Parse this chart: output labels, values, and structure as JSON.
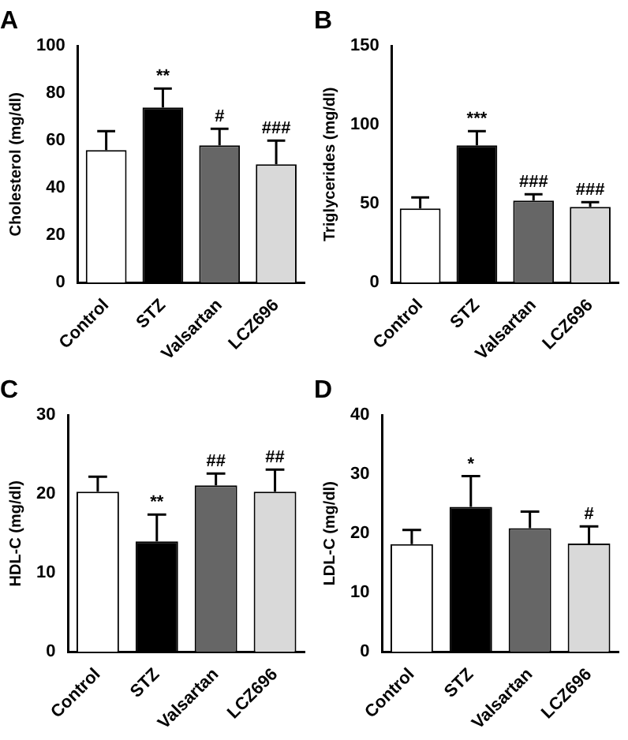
{
  "chart_data": [
    {
      "type": "bar",
      "title": "A",
      "ylabel": "Cholesterol (mg/dl)",
      "categories": [
        "Control",
        "STZ",
        "Valsartan",
        "LCZ696"
      ],
      "values": [
        56,
        74,
        58,
        50
      ],
      "colors": [
        "#ffffff",
        "#000000",
        "#666666",
        "#d9d9d9"
      ],
      "errors": [
        [
          56,
          64
        ],
        [
          74,
          82
        ],
        [
          58,
          65
        ],
        [
          50,
          60
        ]
      ],
      "ylim": [
        0,
        100
      ],
      "yticks": [
        0,
        20,
        40,
        60,
        80,
        100
      ],
      "grid": false,
      "annotations": [
        {
          "text": "**",
          "x": "STZ",
          "y": 82
        },
        {
          "text": "#",
          "x": "Valsartan",
          "y": 65
        },
        {
          "text": "###",
          "x": "LCZ696",
          "y": 60
        }
      ]
    },
    {
      "type": "bar",
      "title": "B",
      "ylabel": "Triglycerides (mg/dl)",
      "categories": [
        "Control",
        "STZ",
        "Valsartan",
        "LCZ696"
      ],
      "values": [
        47,
        87,
        52,
        48
      ],
      "colors": [
        "#ffffff",
        "#000000",
        "#666666",
        "#d9d9d9"
      ],
      "errors": [
        [
          47,
          54
        ],
        [
          87,
          96
        ],
        [
          52,
          56
        ],
        [
          48,
          51
        ]
      ],
      "ylim": [
        0,
        150
      ],
      "yticks": [
        0,
        50,
        100,
        150
      ],
      "grid": false,
      "annotations": [
        {
          "text": "***",
          "x": "STZ",
          "y": 96
        },
        {
          "text": "###",
          "x": "Valsartan",
          "y": 56
        },
        {
          "text": "###",
          "x": "LCZ696",
          "y": 51
        }
      ]
    },
    {
      "type": "bar",
      "title": "C",
      "ylabel": "HDL-C (mg/dl)",
      "categories": [
        "Control",
        "STZ",
        "Valsartan",
        "LCZ696"
      ],
      "values": [
        20.3,
        14,
        21.1,
        20.3
      ],
      "colors": [
        "#ffffff",
        "#000000",
        "#666666",
        "#d9d9d9"
      ],
      "errors": [
        [
          20.3,
          22.2
        ],
        [
          14,
          17.4
        ],
        [
          21.1,
          22.6
        ],
        [
          20.3,
          23.1
        ]
      ],
      "ylim": [
        0,
        30
      ],
      "yticks": [
        0,
        10,
        20,
        30
      ],
      "grid": false,
      "annotations": [
        {
          "text": "**",
          "x": "STZ",
          "y": 17.4
        },
        {
          "text": "##",
          "x": "Valsartan",
          "y": 22.6
        },
        {
          "text": "##",
          "x": "LCZ696",
          "y": 23.1
        }
      ]
    },
    {
      "type": "bar",
      "title": "D",
      "ylabel": "LDL-C (mg/dl)",
      "categories": [
        "Control",
        "STZ",
        "Valsartan",
        "LCZ696"
      ],
      "values": [
        18.2,
        24.5,
        20.9,
        18.3
      ],
      "colors": [
        "#ffffff",
        "#000000",
        "#666666",
        "#d9d9d9"
      ],
      "errors": [
        [
          18.2,
          20.6
        ],
        [
          24.5,
          29.7
        ],
        [
          20.9,
          23.7
        ],
        [
          18.3,
          21.2
        ]
      ],
      "ylim": [
        0,
        40
      ],
      "yticks": [
        0,
        10,
        20,
        30,
        40
      ],
      "grid": false,
      "annotations": [
        {
          "text": "*",
          "x": "STZ",
          "y": 29.7
        },
        {
          "text": "#",
          "x": "LCZ696",
          "y": 21.2
        }
      ]
    }
  ]
}
